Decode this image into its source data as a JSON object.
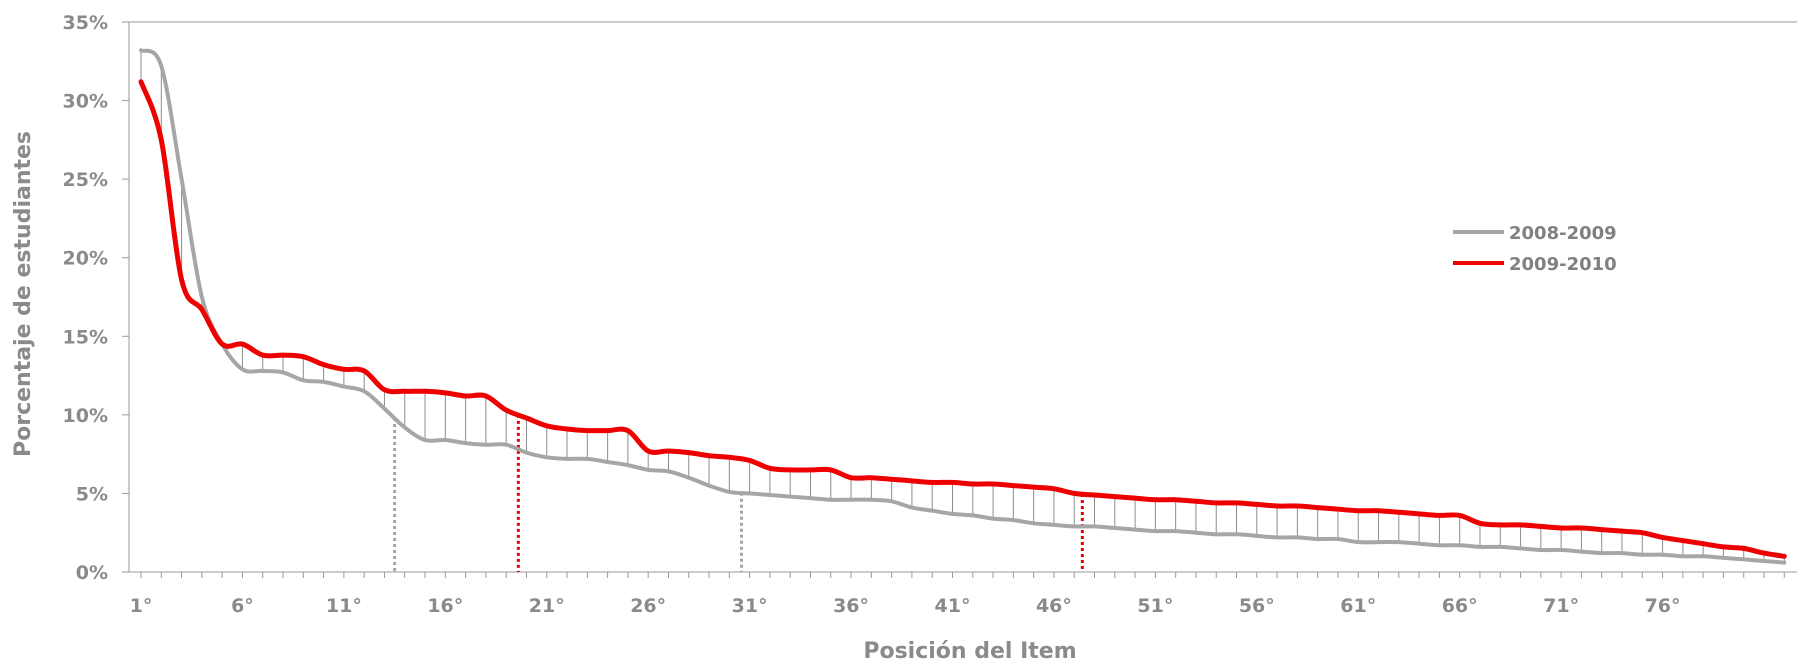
{
  "chart_data": {
    "type": "line",
    "xlabel": "Posición del Item",
    "ylabel": "Porcentaje de estudiantes",
    "ylim": [
      0,
      35
    ],
    "xlim": [
      1,
      81
    ],
    "y_ticks": [
      "0%",
      "5%",
      "10%",
      "15%",
      "20%",
      "25%",
      "30%",
      "35%"
    ],
    "x_ticks": [
      "1°",
      "6°",
      "11°",
      "16°",
      "21°",
      "26°",
      "31°",
      "36°",
      "41°",
      "46°",
      "51°",
      "56°",
      "61°",
      "66°",
      "71°",
      "76°"
    ],
    "legend_position": "right",
    "grid": false,
    "series": [
      {
        "name": "2008-2009",
        "color": "#a6a6a6",
        "values": [
          33.2,
          32.2,
          25.0,
          17.5,
          14.5,
          12.9,
          12.8,
          12.7,
          12.2,
          12.1,
          11.8,
          11.5,
          10.4,
          9.2,
          8.4,
          8.4,
          8.2,
          8.1,
          8.1,
          7.6,
          7.3,
          7.2,
          7.2,
          7.0,
          6.8,
          6.5,
          6.4,
          6.0,
          5.5,
          5.1,
          5.0,
          4.9,
          4.8,
          4.7,
          4.6,
          4.6,
          4.6,
          4.5,
          4.1,
          3.9,
          3.7,
          3.6,
          3.4,
          3.3,
          3.1,
          3.0,
          2.9,
          2.9,
          2.8,
          2.7,
          2.6,
          2.6,
          2.5,
          2.4,
          2.4,
          2.3,
          2.2,
          2.2,
          2.1,
          2.1,
          1.9,
          1.9,
          1.9,
          1.8,
          1.7,
          1.7,
          1.6,
          1.6,
          1.5,
          1.4,
          1.4,
          1.3,
          1.2,
          1.2,
          1.1,
          1.1,
          1.0,
          1.0,
          0.9,
          0.8,
          0.7,
          0.6
        ]
      },
      {
        "name": "2009-2010",
        "color": "#ee0000",
        "values": [
          31.2,
          27.5,
          18.6,
          16.7,
          14.5,
          14.5,
          13.8,
          13.8,
          13.7,
          13.2,
          12.9,
          12.8,
          11.6,
          11.5,
          11.5,
          11.4,
          11.2,
          11.2,
          10.3,
          9.8,
          9.3,
          9.1,
          9.0,
          9.0,
          9.0,
          7.7,
          7.7,
          7.6,
          7.4,
          7.3,
          7.1,
          6.6,
          6.5,
          6.5,
          6.5,
          6.0,
          6.0,
          5.9,
          5.8,
          5.7,
          5.7,
          5.6,
          5.6,
          5.5,
          5.4,
          5.3,
          5.0,
          4.9,
          4.8,
          4.7,
          4.6,
          4.6,
          4.5,
          4.4,
          4.4,
          4.3,
          4.2,
          4.2,
          4.1,
          4.0,
          3.9,
          3.9,
          3.8,
          3.7,
          3.6,
          3.6,
          3.1,
          3.0,
          3.0,
          2.9,
          2.8,
          2.8,
          2.7,
          2.6,
          2.5,
          2.2,
          2.0,
          1.8,
          1.6,
          1.5,
          1.2,
          1.0
        ]
      }
    ],
    "markers": [
      {
        "x": 13.5,
        "color": "#a6a6a6"
      },
      {
        "x": 19.6,
        "color": "#ee0000"
      },
      {
        "x": 30.6,
        "color": "#a6a6a6"
      },
      {
        "x": 47.4,
        "color": "#ee0000"
      }
    ]
  }
}
